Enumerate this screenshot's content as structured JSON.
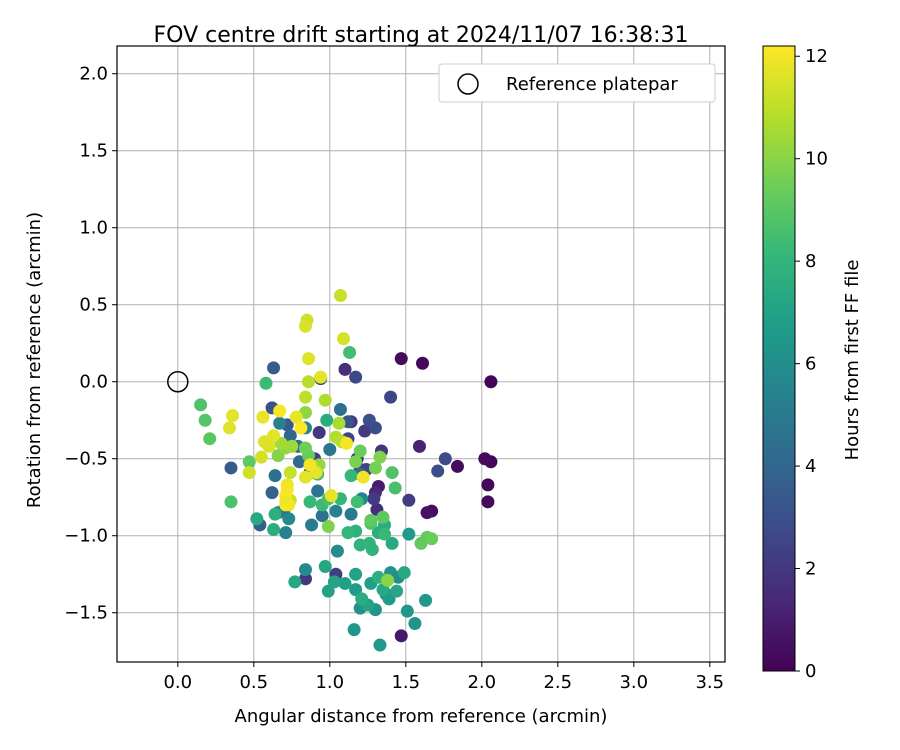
{
  "chart_data": {
    "type": "scatter",
    "title": "FOV centre drift starting at 2024/11/07 16:38:31",
    "xlabel": "Angular distance from reference (arcmin)",
    "ylabel": "Rotation from reference (arcmin)",
    "xlim": [
      -0.4,
      3.6
    ],
    "ylim": [
      -1.82,
      2.18
    ],
    "xticks": [
      0.0,
      0.5,
      1.0,
      1.5,
      2.0,
      2.5,
      3.0,
      3.5
    ],
    "xtick_labels": [
      "0.0",
      "0.5",
      "1.0",
      "1.5",
      "2.0",
      "2.5",
      "3.0",
      "3.5"
    ],
    "yticks": [
      -1.5,
      -1.0,
      -0.5,
      0.0,
      0.5,
      1.0,
      1.5,
      2.0
    ],
    "ytick_labels": [
      "−1.5",
      "−1.0",
      "−0.5",
      "0.0",
      "0.5",
      "1.0",
      "1.5",
      "2.0"
    ],
    "grid": true,
    "legend": {
      "placement": "top-right",
      "entries": [
        "Reference platepar"
      ]
    },
    "reference_point": {
      "x": 0.0,
      "y": 0.0
    },
    "colorbar": {
      "label": "Hours from first FF file",
      "range": [
        0,
        12.2
      ],
      "ticks": [
        0,
        2,
        4,
        6,
        8,
        10,
        12
      ],
      "tick_labels": [
        "0",
        "2",
        "4",
        "6",
        "8",
        "10",
        "12"
      ],
      "colormap": "viridis"
    },
    "colormap_stops": [
      "#440154",
      "#482878",
      "#3e4989",
      "#31688e",
      "#26828e",
      "#1f9e89",
      "#35b779",
      "#6ece58",
      "#b5de2b",
      "#fde725"
    ],
    "points": [
      [
        2.06,
        0.0,
        0.1
      ],
      [
        1.61,
        0.12,
        0.2
      ],
      [
        1.47,
        0.15,
        0.3
      ],
      [
        2.06,
        -0.52,
        0.2
      ],
      [
        2.02,
        -0.5,
        0.3
      ],
      [
        1.84,
        -0.55,
        0.4
      ],
      [
        2.04,
        -0.67,
        0.2
      ],
      [
        2.04,
        -0.78,
        0.3
      ],
      [
        1.67,
        -0.84,
        0.4
      ],
      [
        1.64,
        -0.85,
        0.6
      ],
      [
        1.47,
        -1.65,
        0.8
      ],
      [
        1.32,
        -0.68,
        0.9
      ],
      [
        1.59,
        -0.42,
        1.2
      ],
      [
        1.1,
        0.08,
        1.6
      ],
      [
        1.14,
        -0.26,
        1.8
      ],
      [
        1.3,
        -0.72,
        1.4
      ],
      [
        1.31,
        -0.83,
        1.6
      ],
      [
        1.18,
        -0.5,
        1.7
      ],
      [
        0.93,
        -0.33,
        2.0
      ],
      [
        1.23,
        -0.32,
        2.1
      ],
      [
        0.84,
        -1.28,
        2.0
      ],
      [
        1.04,
        -1.25,
        2.2
      ],
      [
        1.34,
        -0.45,
        1.9
      ],
      [
        1.29,
        -0.76,
        2.1
      ],
      [
        1.2,
        -0.57,
        2.3
      ],
      [
        1.52,
        -0.77,
        2.2
      ],
      [
        0.9,
        -0.5,
        2.4
      ],
      [
        1.12,
        -0.37,
        2.5
      ],
      [
        1.24,
        -0.57,
        2.5
      ],
      [
        1.4,
        -0.1,
        2.6
      ],
      [
        1.17,
        0.03,
        2.7
      ],
      [
        0.94,
        0.02,
        2.6
      ],
      [
        1.76,
        -0.5,
        2.8
      ],
      [
        1.71,
        -0.58,
        2.9
      ],
      [
        0.62,
        -0.17,
        3.1
      ],
      [
        1.3,
        -0.3,
        2.9
      ],
      [
        1.26,
        -0.25,
        3.0
      ],
      [
        1.12,
        -0.26,
        3.2
      ],
      [
        0.87,
        -0.59,
        3.3
      ],
      [
        0.72,
        -0.28,
        3.4
      ],
      [
        0.35,
        -0.56,
        3.5
      ],
      [
        0.63,
        0.09,
        3.6
      ],
      [
        0.54,
        -0.93,
        3.7
      ],
      [
        0.62,
        -0.72,
        3.8
      ],
      [
        0.7,
        -0.83,
        3.9
      ],
      [
        0.74,
        -0.35,
        4.0
      ],
      [
        0.8,
        -0.52,
        4.2
      ],
      [
        1.2,
        -0.6,
        4.3
      ],
      [
        0.79,
        -0.42,
        4.4
      ],
      [
        0.64,
        -0.61,
        4.5
      ],
      [
        0.92,
        -0.71,
        4.6
      ],
      [
        1.07,
        -0.18,
        4.5
      ],
      [
        0.95,
        -0.87,
        4.7
      ],
      [
        1.0,
        -0.44,
        4.8
      ],
      [
        0.66,
        -0.85,
        4.9
      ],
      [
        1.14,
        -0.86,
        5.0
      ],
      [
        0.88,
        -0.93,
        5.1
      ],
      [
        0.71,
        -0.98,
        5.3
      ],
      [
        1.04,
        -0.84,
        5.4
      ],
      [
        0.84,
        -0.3,
        5.5
      ],
      [
        1.21,
        -0.76,
        5.6
      ],
      [
        0.67,
        -0.27,
        5.3
      ],
      [
        0.73,
        -0.89,
        5.7
      ],
      [
        0.84,
        -1.22,
        5.8
      ],
      [
        1.05,
        -1.1,
        5.9
      ],
      [
        1.37,
        -1.38,
        6.0
      ],
      [
        1.2,
        -1.47,
        6.1
      ],
      [
        1.4,
        -1.24,
        6.2
      ],
      [
        1.45,
        -1.27,
        6.0
      ],
      [
        1.3,
        -1.48,
        6.3
      ],
      [
        1.16,
        -1.61,
        6.4
      ],
      [
        1.33,
        -1.71,
        6.5
      ],
      [
        1.51,
        -1.49,
        6.4
      ],
      [
        1.56,
        -1.57,
        6.3
      ],
      [
        1.63,
        -1.42,
        6.5
      ],
      [
        1.52,
        -0.99,
        6.6
      ],
      [
        1.39,
        -1.41,
        6.7
      ],
      [
        1.27,
        -1.31,
        6.8
      ],
      [
        1.17,
        -1.35,
        6.6
      ],
      [
        1.1,
        -1.31,
        6.9
      ],
      [
        0.99,
        -1.36,
        7.0
      ],
      [
        1.03,
        -1.3,
        7.1
      ],
      [
        1.17,
        -1.25,
        7.0
      ],
      [
        0.97,
        -1.2,
        7.2
      ],
      [
        0.77,
        -1.3,
        7.3
      ],
      [
        1.25,
        -1.45,
        7.1
      ],
      [
        1.35,
        -1.35,
        7.4
      ],
      [
        1.21,
        -1.41,
        7.5
      ],
      [
        1.44,
        -1.36,
        7.2
      ],
      [
        1.49,
        -1.24,
        7.3
      ],
      [
        1.36,
        -0.93,
        7.5
      ],
      [
        1.32,
        -0.98,
        7.6
      ],
      [
        1.41,
        -1.05,
        7.4
      ],
      [
        0.63,
        -0.96,
        7.6
      ],
      [
        0.64,
        -0.86,
        7.7
      ],
      [
        0.52,
        -0.89,
        7.4
      ],
      [
        0.98,
        -0.25,
        7.5
      ],
      [
        1.2,
        -1.06,
        7.8
      ],
      [
        1.26,
        -1.05,
        7.9
      ],
      [
        1.32,
        -1.27,
        7.7
      ],
      [
        1.28,
        -1.09,
        7.9
      ],
      [
        1.17,
        -0.97,
        7.8
      ],
      [
        1.12,
        -0.98,
        8.0
      ],
      [
        1.07,
        -0.76,
        8.1
      ],
      [
        1.14,
        -0.61,
        8.1
      ],
      [
        0.87,
        -0.78,
        8.2
      ],
      [
        0.95,
        -0.8,
        8.3
      ],
      [
        1.13,
        0.19,
        8.4
      ],
      [
        0.58,
        -0.01,
        8.3
      ],
      [
        0.92,
        -0.6,
        8.5
      ],
      [
        0.99,
        -0.76,
        8.6
      ],
      [
        1.18,
        -0.78,
        8.4
      ],
      [
        1.36,
        -0.99,
        8.2
      ],
      [
        1.27,
        -0.92,
        8.7
      ],
      [
        1.41,
        -0.59,
        8.8
      ],
      [
        1.43,
        -0.69,
        8.6
      ],
      [
        0.35,
        -0.78,
        8.7
      ],
      [
        0.18,
        -0.25,
        8.9
      ],
      [
        0.21,
        -0.37,
        9.0
      ],
      [
        0.47,
        -0.52,
        9.1
      ],
      [
        0.15,
        -0.15,
        8.8
      ],
      [
        1.35,
        -0.88,
        9.1
      ],
      [
        1.27,
        -0.9,
        9.2
      ],
      [
        1.64,
        -1.01,
        9.3
      ],
      [
        1.67,
        -1.02,
        9.4
      ],
      [
        1.6,
        -1.05,
        9.2
      ],
      [
        0.86,
        -0.48,
        9.3
      ],
      [
        0.84,
        -0.43,
        9.5
      ],
      [
        1.2,
        -0.45,
        9.4
      ],
      [
        1.3,
        -0.56,
        9.6
      ],
      [
        1.33,
        -0.49,
        9.8
      ],
      [
        1.17,
        -0.52,
        9.7
      ],
      [
        0.66,
        -0.48,
        9.9
      ],
      [
        0.99,
        -0.94,
        9.8
      ],
      [
        1.38,
        -1.29,
        10.0
      ],
      [
        0.84,
        -0.2,
        10.1
      ],
      [
        0.71,
        -0.43,
        10.2
      ],
      [
        0.93,
        -0.54,
        10.3
      ],
      [
        0.75,
        -0.42,
        10.4
      ],
      [
        0.68,
        -0.4,
        10.5
      ],
      [
        1.06,
        -0.27,
        10.6
      ],
      [
        0.97,
        -0.12,
        10.7
      ],
      [
        1.04,
        -0.36,
        10.8
      ],
      [
        1.08,
        -0.39,
        10.9
      ],
      [
        0.84,
        -0.1,
        11.0
      ],
      [
        0.74,
        -0.59,
        11.1
      ],
      [
        0.74,
        -0.77,
        11.2
      ],
      [
        0.47,
        -0.59,
        11.3
      ],
      [
        0.55,
        -0.49,
        11.4
      ],
      [
        0.6,
        -0.42,
        11.5
      ],
      [
        0.57,
        -0.39,
        11.6
      ],
      [
        0.63,
        -0.35,
        11.7
      ],
      [
        0.78,
        -0.23,
        11.8
      ],
      [
        0.85,
        0.4,
        11.3
      ],
      [
        0.84,
        0.36,
        11.5
      ],
      [
        0.86,
        0.15,
        11.6
      ],
      [
        1.07,
        0.56,
        11.2
      ],
      [
        1.09,
        0.28,
        11.4
      ],
      [
        0.94,
        0.03,
        11.7
      ],
      [
        0.86,
        0.0,
        10.9
      ],
      [
        0.56,
        -0.23,
        11.8
      ],
      [
        0.34,
        -0.3,
        11.6
      ],
      [
        0.36,
        -0.22,
        11.7
      ],
      [
        0.72,
        -0.67,
        11.9
      ],
      [
        0.72,
        -0.7,
        12.0
      ],
      [
        0.71,
        -0.74,
        12.1
      ],
      [
        0.71,
        -0.8,
        12.2
      ],
      [
        0.71,
        -0.78,
        11.9
      ],
      [
        0.73,
        -0.8,
        12.0
      ],
      [
        0.91,
        -0.59,
        11.8
      ],
      [
        0.87,
        -0.54,
        12.0
      ],
      [
        0.67,
        -0.19,
        12.1
      ],
      [
        0.81,
        -0.3,
        12.2
      ],
      [
        1.11,
        -0.4,
        12.0
      ],
      [
        1.22,
        -0.62,
        11.9
      ],
      [
        1.01,
        -0.74,
        11.8
      ],
      [
        0.84,
        -0.62,
        11.7
      ]
    ]
  }
}
